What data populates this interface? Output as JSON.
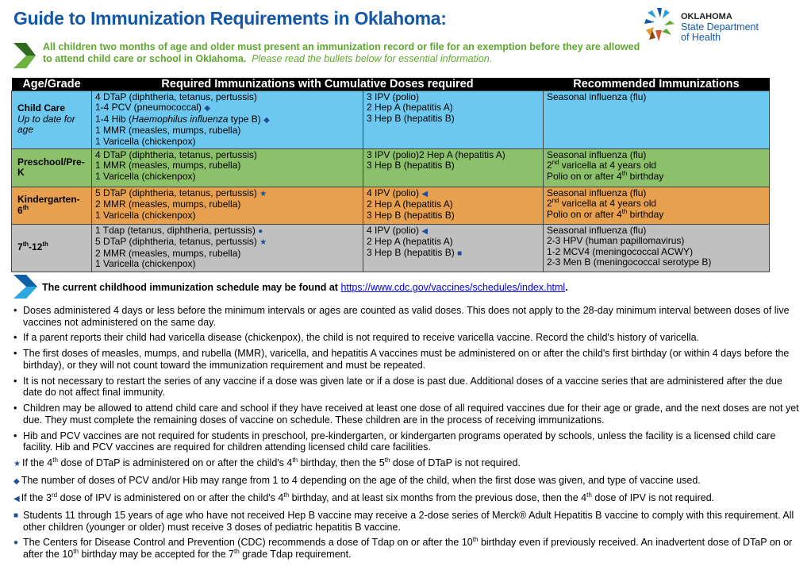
{
  "title": "Guide to Immunization Requirements in Oklahoma:",
  "logo": {
    "line1": "OKLAHOMA",
    "line2": "State Department",
    "line3": "of Health"
  },
  "intro": {
    "bold": "All children two months of age and older must present an immunization record or file for an exemption before they are allowed to attend child care or school in Oklahoma.",
    "italic": "Please read the bullets below for essential information."
  },
  "table": {
    "headers": [
      "Age/Grade",
      "Required Immunizations with Cumulative Doses required",
      "Recommended Immunizations"
    ],
    "rows": [
      {
        "age": [
          {
            "t": "Child Care"
          },
          {
            "br": true
          },
          {
            "t": "Up to date for age",
            "i": true
          }
        ],
        "req1": [
          [
            "4 DTaP (diphtheria, tetanus, pertussis)"
          ],
          [
            "1-4 PCV (pneumococcal) ",
            {
              "s": "◆"
            }
          ],
          [
            "1-4 Hib (",
            {
              "t": "Haemophilus influenza",
              "i": true
            },
            " type B) ",
            {
              "s": "◆"
            }
          ],
          [
            "1 MMR (measles, mumps, rubella)"
          ],
          [
            "1 Varicella (chickenpox)"
          ]
        ],
        "req2": [
          [
            "3 IPV (polio)"
          ],
          [
            "2 Hep A (hepatitis A)"
          ],
          [
            "3 Hep B (hepatitis B)"
          ]
        ],
        "rec": [
          [
            "Seasonal influenza (flu)"
          ]
        ]
      },
      {
        "age": [
          {
            "t": "Preschool/Pre-K"
          }
        ],
        "req1": [
          [
            "4 DTaP (diphtheria, tetanus, pertussis)"
          ],
          [
            "1 MMR (measles, mumps, rubella)"
          ],
          [
            "1 Varicella (chickenpox)"
          ]
        ],
        "req2": [
          [
            "3 IPV (polio)2 Hep A (hepatitis A)"
          ],
          [
            "3 Hep B (hepatitis B)"
          ]
        ],
        "rec": [
          [
            "Seasonal influenza (flu)"
          ],
          [
            "2",
            {
              "sup": "nd"
            },
            " varicella at 4 years old"
          ],
          [
            "Polio on or after 4",
            {
              "sup": "th"
            },
            " birthday"
          ]
        ]
      },
      {
        "age": [
          {
            "t": "Kindergarten-6"
          },
          {
            "sup": "th"
          }
        ],
        "req1": [
          [
            "5 DTaP (diphtheria, tetanus, pertussis) ",
            {
              "s": "★"
            }
          ],
          [
            "2 MMR (measles, mumps, rubella)"
          ],
          [
            "1 Varicella (chickenpox)"
          ]
        ],
        "req2": [
          [
            "4 IPV (polio) ",
            {
              "s": "◀"
            }
          ],
          [
            "2 Hep A (hepatitis A)"
          ],
          [
            "3 Hep B (hepatitis B)"
          ]
        ],
        "rec": [
          [
            "Seasonal influenza (flu)"
          ],
          [
            "2",
            {
              "sup": "nd"
            },
            " varicella at 4 years old"
          ],
          [
            "Polio on or after 4",
            {
              "sup": "th"
            },
            " birthday"
          ]
        ]
      },
      {
        "age": [
          {
            "t": "7"
          },
          {
            "sup": "th"
          },
          {
            "t": "-12"
          },
          {
            "sup": "th"
          }
        ],
        "req1": [
          [
            "1 Tdap (tetanus, diphtheria, pertussis) ",
            {
              "s": "●"
            }
          ],
          [
            "5 DTaP (diphtheria, tetanus, pertussis) ",
            {
              "s": "★"
            }
          ],
          [
            "2 MMR (measles, mumps, rubella)"
          ],
          [
            "1 Varicella (chickenpox)"
          ]
        ],
        "req2": [
          [
            "4 IPV (polio) ",
            {
              "s": "◀"
            }
          ],
          [
            "2 Hep A (hepatitis A)"
          ],
          [
            "3 Hep B (hepatitis B) ",
            {
              "s": "■"
            }
          ]
        ],
        "rec": [
          [
            "Seasonal influenza (flu)"
          ],
          [
            "2-3 HPV (human papillomavirus)"
          ],
          [
            "1-2 MCV4 (meningococcal ACWY)"
          ],
          [
            "2-3 Men B (meningococcal serotype B)"
          ]
        ]
      }
    ],
    "row_colors": [
      "#6cc8ee",
      "#8dc06a",
      "#e6a04e",
      "#c0c0c0"
    ]
  },
  "schedule": {
    "text": "The current childhood immunization schedule may be found at ",
    "link": "https://www.cdc.gov/vaccines/schedules/index.html",
    "after": "."
  },
  "bullets": [
    {
      "m": "•",
      "seg": [
        "Doses administered 4 days or less before the minimum intervals or ages are counted as valid doses. This does not apply to the 28-day minimum interval between doses of live vaccines not administered on the same day."
      ]
    },
    {
      "m": "•",
      "seg": [
        "If a parent reports their child had varicella disease (chickenpox), the child is not required to receive varicella vaccine. Record the child's history of varicella."
      ]
    },
    {
      "m": "•",
      "seg": [
        "The first doses of measles, mumps, and rubella (MMR), varicella, and hepatitis A vaccines must be administered on or after the child's first birthday (or within 4 days before the birthday), or they will not count toward the immunization requirement and must be repeated."
      ]
    },
    {
      "m": "•",
      "seg": [
        "It is not necessary to restart the series of any vaccine if a dose was given late or if a dose is past due. Additional doses of a vaccine series that are administered after the due date do not affect final immunity."
      ]
    },
    {
      "m": "•",
      "seg": [
        "Children may be allowed to attend child care and school if they have received at least one dose of all required vaccines due for their age or grade, and the next doses are not yet due. They must complete the remaining doses of vaccine on schedule. These children are in the process of receiving immunizations."
      ]
    },
    {
      "m": "•",
      "seg": [
        "Hib and PCV vaccines are not required for students in preschool, pre-kindergarten, or kindergarten programs operated by schools, unless the facility is a licensed child care facility. Hib and PCV vaccines are required for children attending licensed child care facilities."
      ]
    },
    {
      "m": "★",
      "inline": true,
      "seg": [
        "If the 4",
        {
          "sup": "th"
        },
        " dose of DTaP is administered on or after the child's 4",
        {
          "sup": "th"
        },
        " birthday, then the 5",
        {
          "sup": "th"
        },
        " dose of DTaP is not required."
      ]
    },
    {
      "m": "◆",
      "inline": true,
      "seg": [
        "The number of doses of PCV and/or Hib may range from 1 to 4 depending on the age of the child, when the first dose was given, and type of vaccine used."
      ]
    },
    {
      "m": "◀",
      "inline": true,
      "seg": [
        "If the 3",
        {
          "sup": "rd"
        },
        " dose of IPV is administered on or after the child's 4",
        {
          "sup": "th"
        },
        " birthday, and at least six months from the previous dose, then the 4",
        {
          "sup": "th"
        },
        " dose of IPV is not required."
      ]
    },
    {
      "m": "■",
      "seg": [
        "Students 11 through 15 years of age who have not received Hep B vaccine may receive a 2-dose series of Merck® Adult Hepatitis B vaccine to comply with this requirement. All other children (younger or older) must receive 3 doses of pediatric hepatitis B vaccine."
      ]
    },
    {
      "m": "●",
      "seg": [
        "The Centers for Disease Control and Prevention (CDC) recommends a dose of Tdap on or after the 10",
        {
          "sup": "th"
        },
        " birthday even if previously received. An inadvertent dose of DTaP on or after the 10",
        {
          "sup": "th"
        },
        " birthday may be accepted for the 7",
        {
          "sup": "th"
        },
        " grade Tdap requirement."
      ]
    }
  ],
  "colors": {
    "title": "#1358a8",
    "intro": "#5fa82e",
    "symbol": "#1f4e9a",
    "link": "#0000ee"
  }
}
